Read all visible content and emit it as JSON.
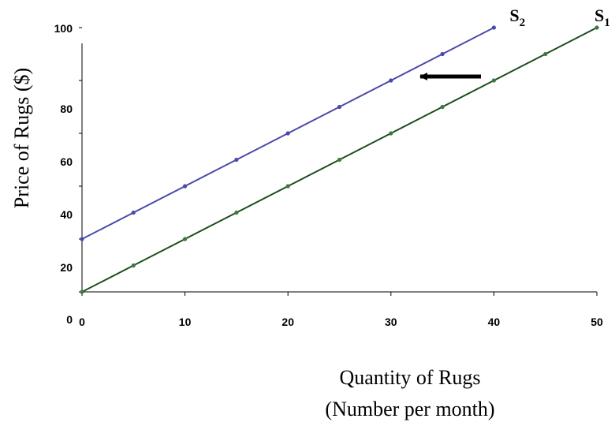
{
  "chart_data": {
    "type": "line",
    "xlabel_line1": "Quantity of Rugs",
    "xlabel_line2": "(Number per month)",
    "ylabel": "Price of Rugs ($)",
    "x_ticks": [
      "0",
      "10",
      "20",
      "30",
      "40",
      "50"
    ],
    "y_tick_labels": [
      {
        "label": "0",
        "value": 0
      },
      {
        "label": "20",
        "value": 20
      },
      {
        "label": "40",
        "value": 40
      },
      {
        "label": "60",
        "value": 60
      },
      {
        "label": "80",
        "value": 80
      },
      {
        "label": "100",
        "value": 100
      }
    ],
    "y_axis_label_style": "labels as printed; positions follow gridline spacing of the original",
    "xlim": [
      0,
      50
    ],
    "ylim": [
      0,
      100
    ],
    "grid": false,
    "series": [
      {
        "name": "S1",
        "label_main": "S",
        "label_sub": "1",
        "color": "#1e4d1e",
        "marker_color": "#3c7a3c",
        "x": [
          0,
          5,
          10,
          15,
          20,
          25,
          30,
          35,
          40,
          45,
          50
        ],
        "y": [
          0,
          10,
          20,
          30,
          40,
          50,
          60,
          70,
          80,
          90,
          100
        ]
      },
      {
        "name": "S2",
        "label_main": "S",
        "label_sub": "2",
        "color": "#4a4aa8",
        "marker_color": "#4a4aa8",
        "x": [
          0,
          5,
          10,
          15,
          20,
          25,
          30,
          35,
          40
        ],
        "y": [
          20,
          30,
          40,
          50,
          60,
          70,
          80,
          90,
          100
        ]
      }
    ],
    "annotation": {
      "type": "arrow",
      "direction": "left",
      "color": "#000000"
    }
  }
}
